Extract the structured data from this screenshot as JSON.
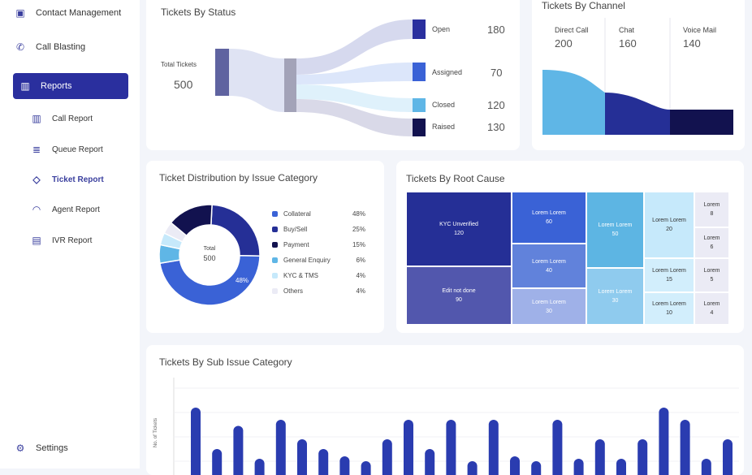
{
  "sidebar": {
    "items": [
      {
        "label": "Contact Management",
        "icon": "contact-icon"
      },
      {
        "label": "Call Blasting",
        "icon": "phone-icon"
      },
      {
        "label": "Reports",
        "icon": "bar-chart-icon",
        "active": true
      }
    ],
    "sub_items": [
      {
        "label": "Call Report",
        "icon": "bar-chart-icon"
      },
      {
        "label": "Queue Report",
        "icon": "list-icon"
      },
      {
        "label": "Ticket Report",
        "icon": "tag-icon",
        "selected": true
      },
      {
        "label": "Agent Report",
        "icon": "headset-icon"
      },
      {
        "label": "IVR Report",
        "icon": "ivr-icon"
      }
    ],
    "settings": "Settings"
  },
  "colors": {
    "accent": "#2a2f9e",
    "navy": "#12124f",
    "blue": "#3a62d6",
    "sky": "#5fb6e6",
    "light": "#c6e9fb",
    "grey": "#ebebf5"
  },
  "status": {
    "title": "Tickets By Status",
    "total_label": "Total Tickets",
    "total": "500",
    "outputs": [
      {
        "label": "Open",
        "value": "180",
        "color": "#2a2f9e"
      },
      {
        "label": "Assigned",
        "value": "70",
        "color": "#3a62d6"
      },
      {
        "label": "Closed",
        "value": "120",
        "color": "#5fb6e6"
      },
      {
        "label": "Raised",
        "value": "130",
        "color": "#12124f"
      }
    ]
  },
  "channel": {
    "title": "Tickets By Channel",
    "items": [
      {
        "label": "Direct Call",
        "value": "200",
        "color": "#5fb6e6"
      },
      {
        "label": "Chat",
        "value": "160",
        "color": "#252f96"
      },
      {
        "label": "Voice Mail",
        "value": "140",
        "color": "#12124f"
      }
    ]
  },
  "distribution": {
    "title": "Ticket Distribution by Issue Category",
    "center_label": "Total",
    "center_value": "500",
    "slice_label": "48%",
    "items": [
      {
        "label": "Collateral",
        "pct": "48%",
        "value": 48,
        "color": "#3a62d6"
      },
      {
        "label": "Buy/Sell",
        "pct": "25%",
        "value": 25,
        "color": "#252f96"
      },
      {
        "label": "Payment",
        "pct": "15%",
        "value": 15,
        "color": "#12124f"
      },
      {
        "label": "General Enquiry",
        "pct": "6%",
        "value": 6,
        "color": "#5fb6e6"
      },
      {
        "label": "KYC & TMS",
        "pct": "4%",
        "value": 4,
        "color": "#c6e9fb"
      },
      {
        "label": "Others",
        "pct": "4%",
        "value": 4,
        "color": "#ebebf5"
      }
    ]
  },
  "root_cause": {
    "title": "Tickets By Root Cause",
    "cells": [
      {
        "label": "KYC Unverified",
        "value": "120"
      },
      {
        "label": "Edit not done",
        "value": "90"
      },
      {
        "label": "Lorem Lorem",
        "value": "60"
      },
      {
        "label": "Lorem Lorem",
        "value": "40"
      },
      {
        "label": "Lorem Lorem",
        "value": "30"
      },
      {
        "label": "Lorem Lorem",
        "value": "50"
      },
      {
        "label": "Lorem Lorem",
        "value": "30"
      },
      {
        "label": "Lorem Lorem",
        "value": "20"
      },
      {
        "label": "Lorem Lorem",
        "value": "15"
      },
      {
        "label": "Lorem Lorem",
        "value": "10"
      },
      {
        "label": "Lorem",
        "value": "8"
      },
      {
        "label": "Lorem",
        "value": "6"
      },
      {
        "label": "Lorem",
        "value": "5"
      },
      {
        "label": "Lorem",
        "value": "4"
      }
    ]
  },
  "chart_data": {
    "type": "bar",
    "title": "Tickets By Sub Issue Category",
    "ylabel": "No. of Tickets",
    "grid": true,
    "values": [
      3.2,
      1.5,
      2.45,
      1.1,
      2.7,
      1.9,
      1.5,
      1.2,
      1.0,
      1.9,
      2.7,
      1.5,
      2.7,
      1.0,
      2.7,
      1.2,
      1.0,
      2.7,
      1.1,
      1.9,
      1.1,
      1.9,
      3.2,
      2.7,
      1.1,
      1.9
    ],
    "color": "#2a3cb0"
  }
}
